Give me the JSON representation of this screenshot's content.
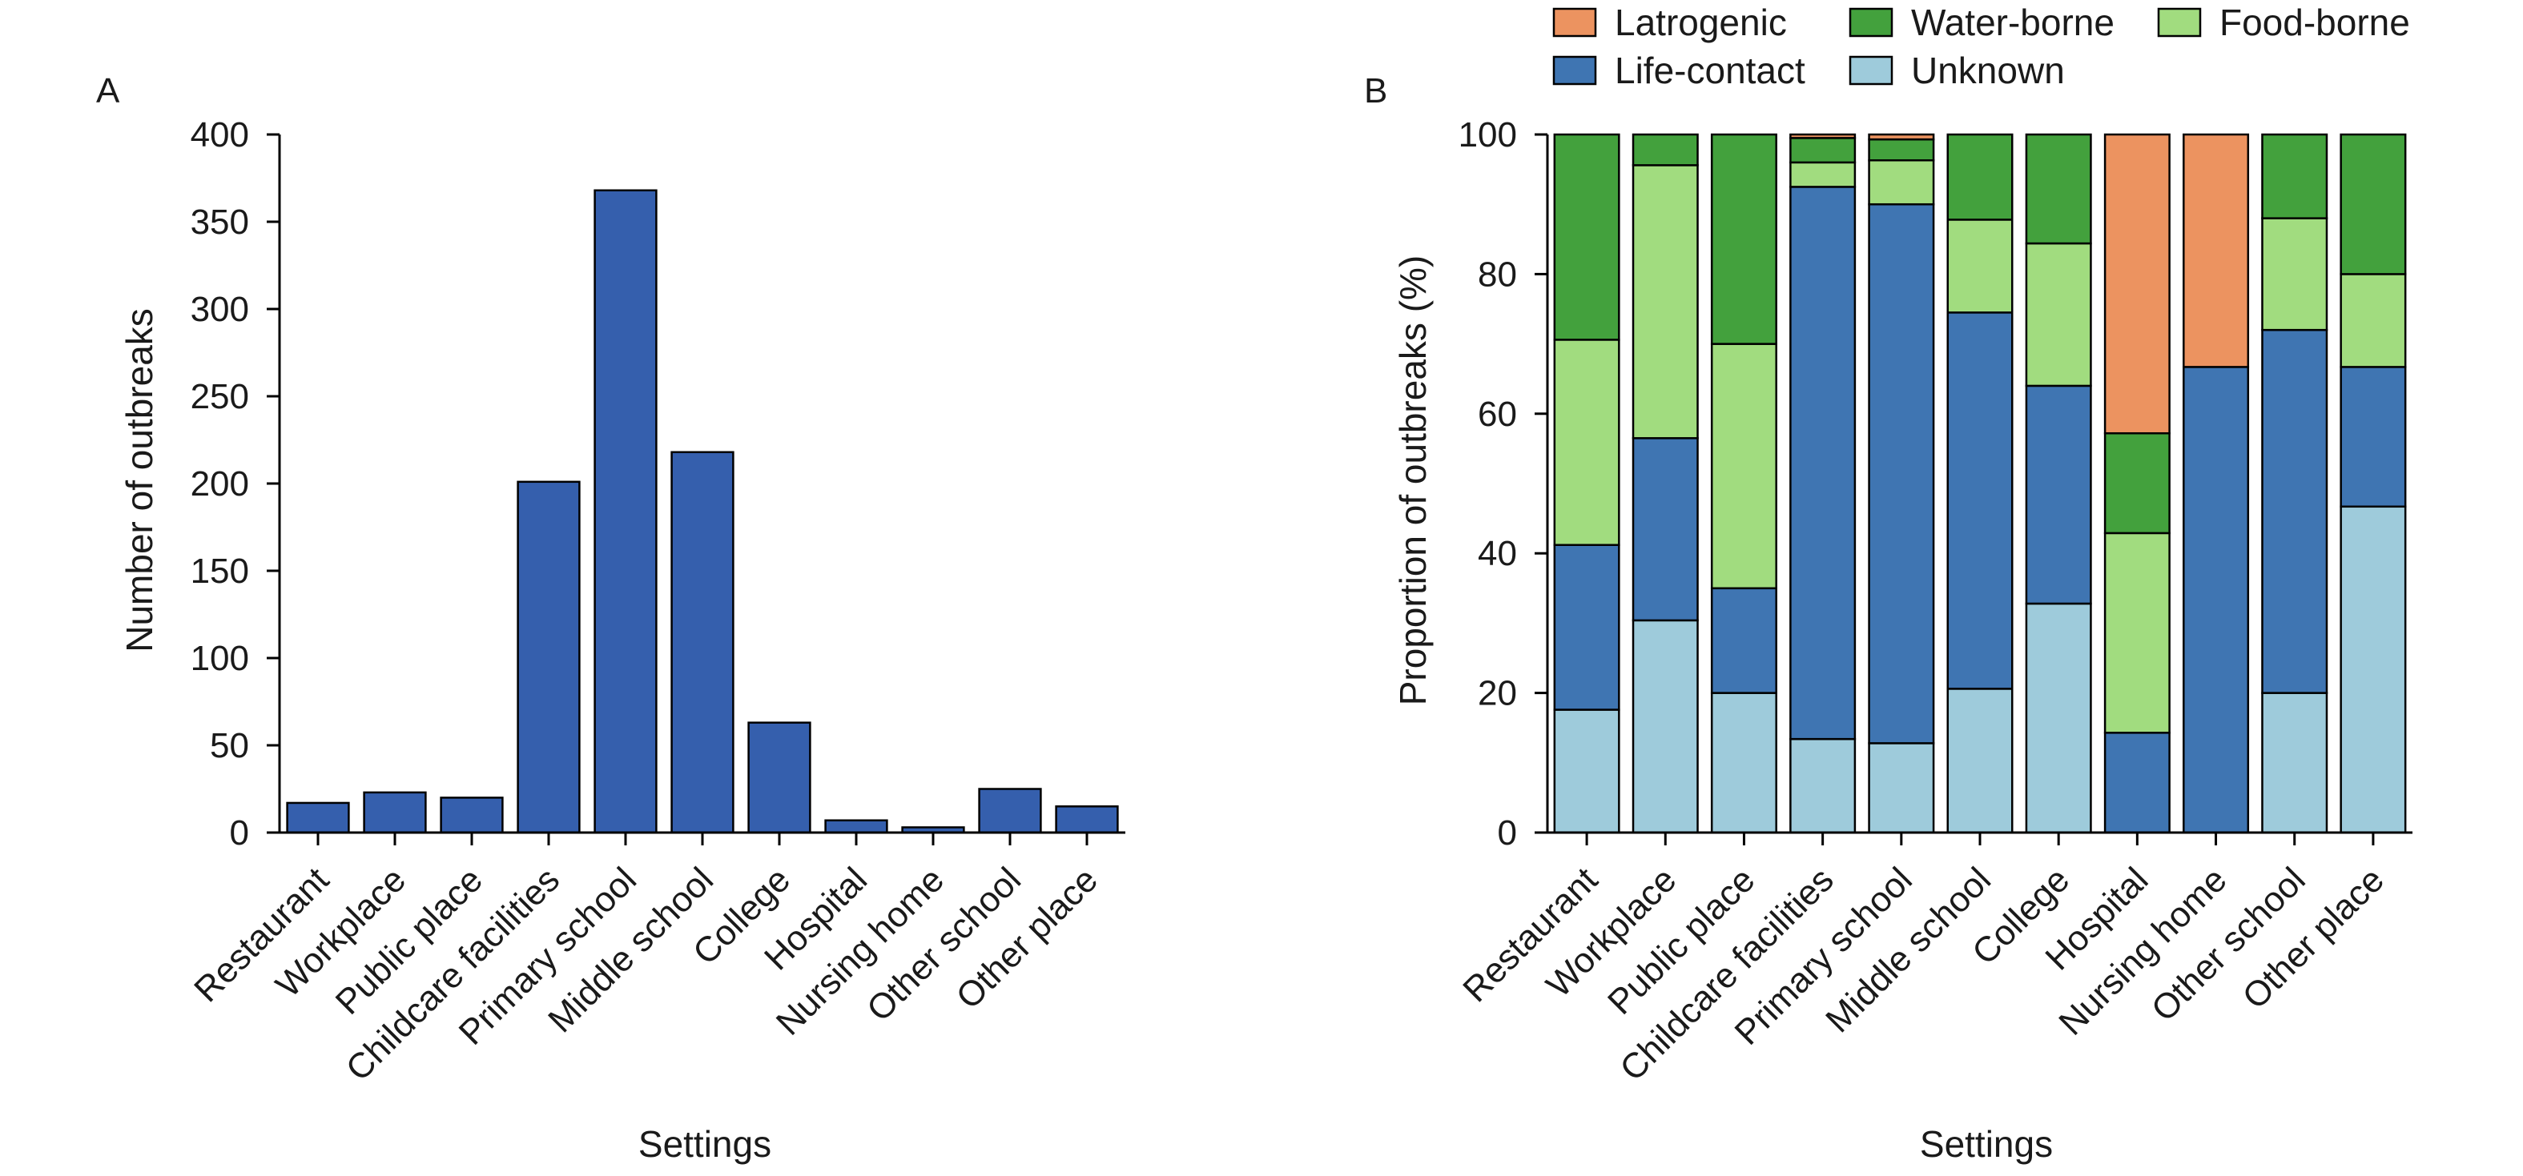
{
  "chart_data": [
    {
      "type": "bar",
      "panel": "A",
      "categories": [
        "Restaurant",
        "Workplace",
        "Public place",
        "Childcare facilities",
        "Primary school",
        "Middle school",
        "College",
        "Hospital",
        "Nursing home",
        "Other school",
        "Other place"
      ],
      "values": [
        17,
        23,
        20,
        201,
        368,
        218,
        63,
        7,
        3,
        25,
        15
      ],
      "xlabel": "Settings",
      "ylabel": "Number of outbreaks",
      "ylim": [
        0,
        400
      ],
      "yticks": [
        "0",
        "50",
        "100",
        "150",
        "200",
        "250",
        "300",
        "350",
        "400"
      ],
      "bar_color": "#355fad",
      "grid": false
    },
    {
      "type": "bar",
      "stacked": true,
      "panel": "B",
      "categories": [
        "Restaurant",
        "Workplace",
        "Public place",
        "Childcare facilities",
        "Primary school",
        "Middle school",
        "College",
        "Hospital",
        "Nursing home",
        "Other school",
        "Other place"
      ],
      "series": [
        {
          "name": "Unknown",
          "color": "#9ecbdb",
          "values": [
            17.6,
            30.4,
            20.0,
            13.4,
            12.8,
            20.6,
            32.8,
            0,
            0,
            20.0,
            46.7
          ]
        },
        {
          "name": "Life-contact",
          "color": "#3f75b2",
          "values": [
            23.6,
            26.1,
            15.0,
            79.1,
            77.2,
            53.9,
            31.2,
            14.3,
            66.7,
            52.0,
            20.0
          ]
        },
        {
          "name": "Food-borne",
          "color": "#a1dc7f",
          "values": [
            29.4,
            39.1,
            35.0,
            3.5,
            6.3,
            13.3,
            20.4,
            28.6,
            0,
            16.0,
            13.3
          ]
        },
        {
          "name": "Water-borne",
          "color": "#43a13d",
          "values": [
            29.4,
            4.4,
            30.0,
            3.5,
            3.0,
            12.2,
            15.6,
            14.3,
            0,
            12.0,
            20.0
          ]
        },
        {
          "name": "Latrogenic",
          "color": "#ec9360",
          "values": [
            0,
            0,
            0,
            0.5,
            0.7,
            0,
            0,
            42.8,
            33.3,
            0,
            0
          ]
        }
      ],
      "xlabel": "Settings",
      "ylabel": "Proportion of outbreaks (%)",
      "ylim": [
        0,
        100
      ],
      "yticks": [
        "0",
        "20",
        "40",
        "60",
        "80",
        "100"
      ],
      "legend": {
        "placement": "top",
        "order": [
          "Latrogenic",
          "Water-borne",
          "Food-borne",
          "Life-contact",
          "Unknown"
        ]
      },
      "grid": false
    }
  ]
}
